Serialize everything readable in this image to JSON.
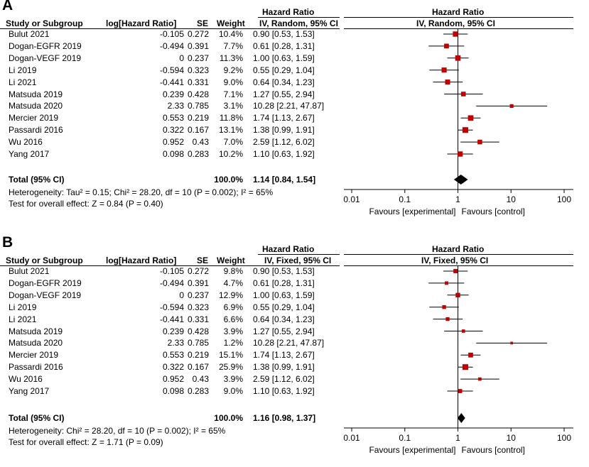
{
  "columns": {
    "study": "Study or Subgroup",
    "log_hr": "log[Hazard Ratio]",
    "se": "SE",
    "weight": "Weight",
    "hr_top": "Hazard Ratio",
    "plot_top": "Hazard Ratio"
  },
  "studies": [
    {
      "name": "Bulut 2021",
      "log_hr": "-0.105",
      "se": "0.272",
      "hr": 0.9,
      "lo": 0.53,
      "hi": 1.53,
      "ci": "0.90 [0.53, 1.53]"
    },
    {
      "name": "Dogan-EGFR 2019",
      "log_hr": "-0.494",
      "se": "0.391",
      "hr": 0.61,
      "lo": 0.28,
      "hi": 1.31,
      "ci": "0.61 [0.28, 1.31]"
    },
    {
      "name": "Dogan-VEGF 2019",
      "log_hr": "0",
      "se": "0.237",
      "hr": 1.0,
      "lo": 0.63,
      "hi": 1.59,
      "ci": "1.00 [0.63, 1.59]"
    },
    {
      "name": "Li 2019",
      "log_hr": "-0.594",
      "se": "0.323",
      "hr": 0.55,
      "lo": 0.29,
      "hi": 1.04,
      "ci": "0.55 [0.29, 1.04]"
    },
    {
      "name": "Li 2021",
      "log_hr": "-0.441",
      "se": "0.331",
      "hr": 0.64,
      "lo": 0.34,
      "hi": 1.23,
      "ci": "0.64 [0.34, 1.23]"
    },
    {
      "name": "Matsuda 2019",
      "log_hr": "0.239",
      "se": "0.428",
      "hr": 1.27,
      "lo": 0.55,
      "hi": 2.94,
      "ci": "1.27 [0.55, 2.94]"
    },
    {
      "name": "Matsuda 2020",
      "log_hr": "2.33",
      "se": "0.785",
      "hr": 10.28,
      "lo": 2.21,
      "hi": 47.87,
      "ci": "10.28 [2.21, 47.87]"
    },
    {
      "name": "Mercier 2019",
      "log_hr": "0.553",
      "se": "0.219",
      "hr": 1.74,
      "lo": 1.13,
      "hi": 2.67,
      "ci": "1.74 [1.13, 2.67]"
    },
    {
      "name": "Passardi 2016",
      "log_hr": "0.322",
      "se": "0.167",
      "hr": 1.38,
      "lo": 0.99,
      "hi": 1.91,
      "ci": "1.38 [0.99, 1.91]"
    },
    {
      "name": "Wu 2016",
      "log_hr": "0.952",
      "se": "0.43",
      "hr": 2.59,
      "lo": 1.12,
      "hi": 6.02,
      "ci": "2.59 [1.12, 6.02]"
    },
    {
      "name": "Yang 2017",
      "log_hr": "0.098",
      "se": "0.283",
      "hr": 1.1,
      "lo": 0.63,
      "hi": 1.92,
      "ci": "1.10 [0.63, 1.92]"
    }
  ],
  "panels": [
    {
      "letter": "A",
      "model_label": "IV, Random, 95% CI",
      "weights": [
        "10.4%",
        "7.7%",
        "11.3%",
        "9.2%",
        "9.0%",
        "7.1%",
        "3.1%",
        "11.8%",
        "13.1%",
        "7.0%",
        "10.2%"
      ],
      "total_label": "Total (95% CI)",
      "total_weight": "100.0%",
      "total_ci": "1.14 [0.84, 1.54]",
      "total": {
        "hr": 1.14,
        "lo": 0.84,
        "hi": 1.54
      },
      "heterogeneity": "Heterogeneity: Tau² = 0.15; Chi² = 28.20, df = 10 (P = 0.002); I² = 65%",
      "overall": "Test for overall effect: Z = 0.84 (P = 0.40)"
    },
    {
      "letter": "B",
      "model_label": "IV, Fixed, 95% CI",
      "weights": [
        "9.8%",
        "4.7%",
        "12.9%",
        "6.9%",
        "6.6%",
        "3.9%",
        "1.2%",
        "15.1%",
        "25.9%",
        "3.9%",
        "9.0%"
      ],
      "total_label": "Total (95% CI)",
      "total_weight": "100.0%",
      "total_ci": "1.16 [0.98, 1.37]",
      "total": {
        "hr": 1.16,
        "lo": 0.98,
        "hi": 1.37
      },
      "heterogeneity": "Heterogeneity: Chi² = 28.20, df = 10 (P = 0.002); I² = 65%",
      "overall": "Test for overall effect: Z = 1.71 (P = 0.09)"
    }
  ],
  "chart_data": {
    "type": "forest",
    "scale": "log",
    "xlim": [
      0.01,
      100
    ],
    "ticks": [
      "0.01",
      "0.1",
      "1",
      "10",
      "100"
    ],
    "tick_values": [
      0.01,
      0.1,
      1,
      10,
      100
    ],
    "favours_left": "Favours [experimental]",
    "favours_right": "Favours [control]",
    "marker_color": "#c00000",
    "diamond_color": "#000000"
  }
}
